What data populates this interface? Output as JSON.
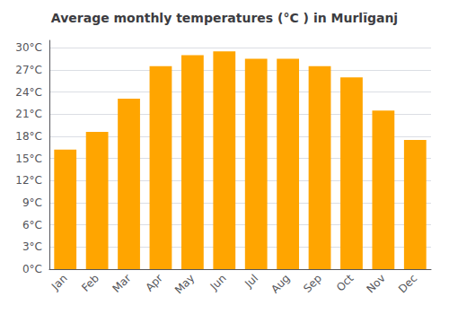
{
  "chart_data": {
    "type": "bar",
    "title": "Average monthly temperatures (°C ) in Murlīganj",
    "categories": [
      "Jan",
      "Feb",
      "Mar",
      "Apr",
      "May",
      "Jun",
      "Jul",
      "Aug",
      "Sep",
      "Oct",
      "Nov",
      "Dec"
    ],
    "values": [
      16.2,
      18.6,
      23.1,
      27.5,
      29.0,
      29.5,
      28.5,
      28.5,
      27.5,
      26.0,
      21.5,
      17.5
    ],
    "color": "#FFA500",
    "ylim": [
      0,
      31
    ],
    "yticks": [
      {
        "value": 0,
        "label": "0°C"
      },
      {
        "value": 3,
        "label": "3°C"
      },
      {
        "value": 6,
        "label": "6°C"
      },
      {
        "value": 9,
        "label": "9°C"
      },
      {
        "value": 12,
        "label": "12°C"
      },
      {
        "value": 15,
        "label": "15°C"
      },
      {
        "value": 18,
        "label": "18°C"
      },
      {
        "value": 21,
        "label": "21°C"
      },
      {
        "value": 24,
        "label": "24°C"
      },
      {
        "value": 27,
        "label": "27°C"
      },
      {
        "value": 30,
        "label": "30°C"
      }
    ],
    "grid": true
  }
}
